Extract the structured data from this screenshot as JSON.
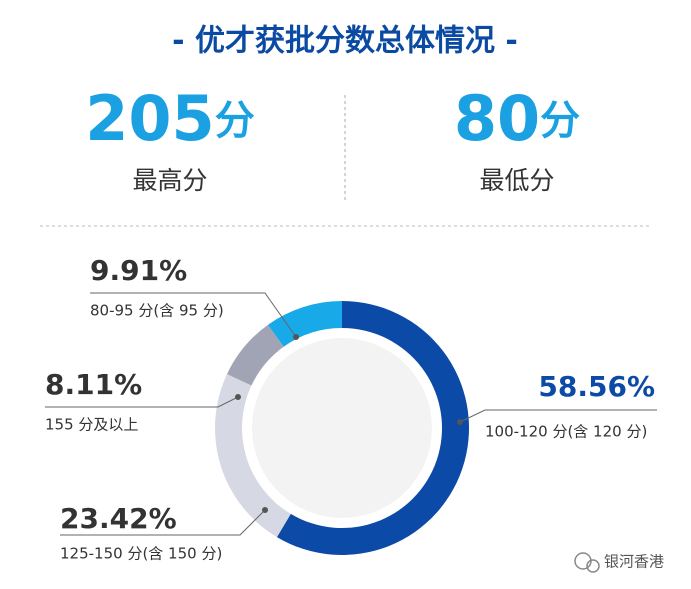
{
  "header": {
    "title": "- 优才获批分数总体情况 -"
  },
  "stats": [
    {
      "number": "205",
      "unit": "分",
      "label": "最高分"
    },
    {
      "number": "80",
      "unit": "分",
      "label": "最低分"
    }
  ],
  "chart_data": {
    "type": "pie",
    "donut": true,
    "categories": [
      "100-120 分(含 120 分)",
      "125-150 分(含 150 分)",
      "155 分及以上",
      "80-95 分(含 95 分)"
    ],
    "values": [
      58.56,
      23.42,
      8.11,
      9.91
    ],
    "value_labels": [
      "58.56%",
      "23.42%",
      "8.11%",
      "9.91%"
    ],
    "colors": [
      "#0b4aa6",
      "#d6d9e4",
      "#a1a4b4",
      "#17a9e8"
    ]
  },
  "watermark": "银河香港"
}
